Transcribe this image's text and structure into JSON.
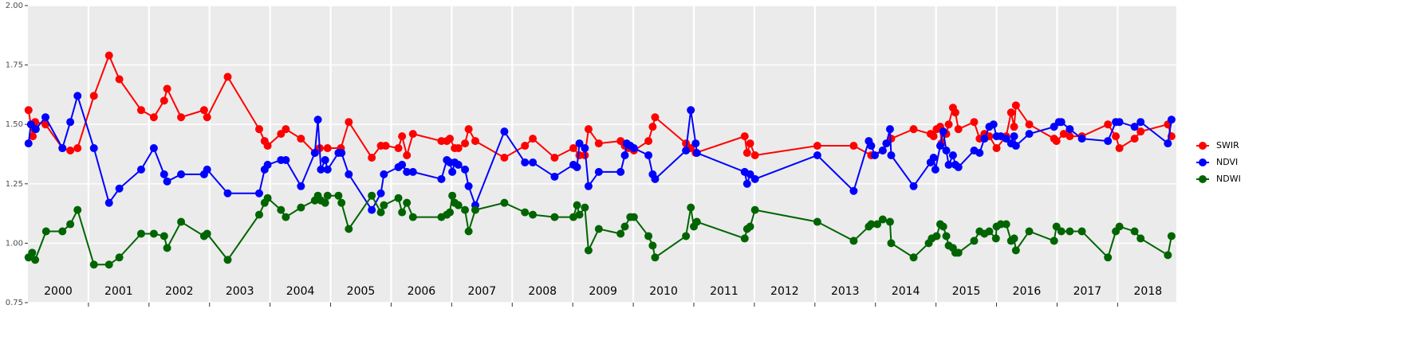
{
  "chart_data": {
    "type": "line",
    "xlim": [
      2000,
      2018.97
    ],
    "ylim": [
      0.75,
      2.0
    ],
    "yticks": [
      {
        "value": 0.75,
        "label": "0.75"
      },
      {
        "value": 1.0,
        "label": "1.00"
      },
      {
        "value": 1.25,
        "label": "1.25"
      },
      {
        "value": 1.5,
        "label": "1.50"
      },
      {
        "value": 1.75,
        "label": "1.75"
      },
      {
        "value": 2.0,
        "label": "2.00"
      }
    ],
    "xticks": [
      {
        "value": 2000.5,
        "label": "2000"
      },
      {
        "value": 2001.5,
        "label": "2001"
      },
      {
        "value": 2002.5,
        "label": "2002"
      },
      {
        "value": 2003.5,
        "label": "2003"
      },
      {
        "value": 2004.5,
        "label": "2004"
      },
      {
        "value": 2005.5,
        "label": "2005"
      },
      {
        "value": 2006.5,
        "label": "2006"
      },
      {
        "value": 2007.5,
        "label": "2007"
      },
      {
        "value": 2008.5,
        "label": "2008"
      },
      {
        "value": 2009.5,
        "label": "2009"
      },
      {
        "value": 2010.5,
        "label": "2010"
      },
      {
        "value": 2011.5,
        "label": "2011"
      },
      {
        "value": 2012.5,
        "label": "2012"
      },
      {
        "value": 2013.5,
        "label": "2013"
      },
      {
        "value": 2014.5,
        "label": "2014"
      },
      {
        "value": 2015.5,
        "label": "2015"
      },
      {
        "value": 2016.5,
        "label": "2016"
      },
      {
        "value": 2017.5,
        "label": "2017"
      },
      {
        "value": 2018.5,
        "label": "2018"
      }
    ],
    "x_breaks": [
      2001,
      2002,
      2003,
      2004,
      2005,
      2006,
      2007,
      2008,
      2009,
      2010,
      2011,
      2012,
      2013,
      2014,
      2015,
      2016,
      2017,
      2018
    ],
    "grid": true,
    "legend": "right",
    "series": [
      {
        "name": "SWIR",
        "color": "#ff0000",
        "x": [
          2000.01,
          2000.08,
          2000.12,
          2000.29,
          2000.57,
          2000.7,
          2000.82,
          2001.09,
          2001.34,
          2001.51,
          2001.87,
          2002.08,
          2002.25,
          2002.3,
          2002.53,
          2002.91,
          2002.96,
          2003.3,
          2003.82,
          2003.91,
          2003.96,
          2004.18,
          2004.26,
          2004.51,
          2004.74,
          2004.82,
          2004.95,
          2005.17,
          2005.3,
          2005.68,
          2005.83,
          2005.91,
          2006.12,
          2006.18,
          2006.26,
          2006.36,
          2006.83,
          2006.92,
          2006.97,
          2007.05,
          2007.11,
          2007.22,
          2007.28,
          2007.39,
          2007.87,
          2008.21,
          2008.34,
          2008.7,
          2009.01,
          2009.11,
          2009.2,
          2009.26,
          2009.43,
          2009.79,
          2009.86,
          2009.92,
          2010.01,
          2010.25,
          2010.32,
          2010.36,
          2010.87,
          2010.95,
          2011.03,
          2011.84,
          2011.88,
          2011.93,
          2012.01,
          2013.04,
          2013.64,
          2013.93,
          2014.12,
          2014.26,
          2014.63,
          2014.91,
          2014.96,
          2015.01,
          2015.07,
          2015.09,
          2015.17,
          2015.21,
          2015.28,
          2015.32,
          2015.37,
          2015.63,
          2015.72,
          2015.8,
          2015.88,
          2016.0,
          2016.16,
          2016.24,
          2016.29,
          2016.32,
          2016.54,
          2016.95,
          2016.99,
          2017.11,
          2017.21,
          2017.41,
          2017.84,
          2017.97,
          2018.03,
          2018.28,
          2018.38,
          2018.83,
          2018.89
        ],
        "values": [
          1.56,
          1.45,
          1.51,
          1.5,
          1.4,
          1.39,
          1.4,
          1.62,
          1.79,
          1.69,
          1.56,
          1.53,
          1.6,
          1.65,
          1.53,
          1.56,
          1.53,
          1.7,
          1.48,
          1.43,
          1.41,
          1.46,
          1.48,
          1.44,
          1.38,
          1.4,
          1.4,
          1.4,
          1.51,
          1.36,
          1.41,
          1.41,
          1.4,
          1.45,
          1.37,
          1.46,
          1.43,
          1.43,
          1.44,
          1.4,
          1.4,
          1.42,
          1.48,
          1.43,
          1.36,
          1.41,
          1.44,
          1.36,
          1.4,
          1.37,
          1.37,
          1.48,
          1.42,
          1.43,
          1.41,
          1.4,
          1.39,
          1.43,
          1.49,
          1.53,
          1.42,
          1.4,
          1.38,
          1.45,
          1.38,
          1.42,
          1.37,
          1.41,
          1.41,
          1.37,
          1.39,
          1.44,
          1.48,
          1.46,
          1.45,
          1.48,
          1.49,
          1.42,
          1.46,
          1.5,
          1.57,
          1.55,
          1.48,
          1.51,
          1.44,
          1.46,
          1.45,
          1.4,
          1.45,
          1.55,
          1.49,
          1.58,
          1.5,
          1.44,
          1.43,
          1.46,
          1.45,
          1.45,
          1.5,
          1.45,
          1.4,
          1.44,
          1.47,
          1.5,
          1.45
        ]
      },
      {
        "name": "NDVI",
        "color": "#0000ff",
        "x": [
          2000.01,
          2000.05,
          2000.13,
          2000.29,
          2000.57,
          2000.7,
          2000.82,
          2001.09,
          2001.34,
          2001.51,
          2001.87,
          2002.08,
          2002.25,
          2002.3,
          2002.53,
          2002.91,
          2002.96,
          2003.3,
          2003.82,
          2003.91,
          2003.96,
          2004.18,
          2004.26,
          2004.51,
          2004.74,
          2004.79,
          2004.84,
          2004.91,
          2004.95,
          2005.13,
          2005.18,
          2005.3,
          2005.68,
          2005.83,
          2005.88,
          2006.12,
          2006.18,
          2006.26,
          2006.36,
          2006.83,
          2006.92,
          2006.97,
          2007.01,
          2007.05,
          2007.11,
          2007.22,
          2007.28,
          2007.39,
          2007.87,
          2008.21,
          2008.34,
          2008.7,
          2009.01,
          2009.07,
          2009.11,
          2009.2,
          2009.26,
          2009.43,
          2009.79,
          2009.86,
          2009.89,
          2009.95,
          2010.01,
          2010.25,
          2010.32,
          2010.36,
          2010.87,
          2010.95,
          2011.03,
          2011.05,
          2011.84,
          2011.88,
          2011.93,
          2012.01,
          2013.04,
          2013.64,
          2013.89,
          2013.93,
          2013.99,
          2014.12,
          2014.18,
          2014.24,
          2014.26,
          2014.63,
          2014.91,
          2014.96,
          2014.99,
          2015.07,
          2015.12,
          2015.17,
          2015.21,
          2015.28,
          2015.32,
          2015.37,
          2015.63,
          2015.72,
          2015.8,
          2015.88,
          2015.95,
          2016.0,
          2016.07,
          2016.16,
          2016.24,
          2016.29,
          2016.32,
          2016.54,
          2016.95,
          2017.03,
          2017.07,
          2017.21,
          2017.41,
          2017.84,
          2017.97,
          2018.03,
          2018.28,
          2018.38,
          2018.83,
          2018.89
        ],
        "values": [
          1.42,
          1.5,
          1.48,
          1.53,
          1.4,
          1.51,
          1.62,
          1.4,
          1.17,
          1.23,
          1.31,
          1.4,
          1.29,
          1.26,
          1.29,
          1.29,
          1.31,
          1.21,
          1.21,
          1.31,
          1.33,
          1.35,
          1.35,
          1.24,
          1.38,
          1.52,
          1.31,
          1.35,
          1.31,
          1.38,
          1.38,
          1.29,
          1.14,
          1.21,
          1.29,
          1.32,
          1.33,
          1.3,
          1.3,
          1.27,
          1.35,
          1.34,
          1.3,
          1.34,
          1.33,
          1.31,
          1.24,
          1.16,
          1.47,
          1.34,
          1.34,
          1.28,
          1.33,
          1.32,
          1.42,
          1.4,
          1.24,
          1.3,
          1.3,
          1.37,
          1.42,
          1.41,
          1.4,
          1.37,
          1.29,
          1.27,
          1.39,
          1.56,
          1.42,
          1.38,
          1.3,
          1.25,
          1.29,
          1.27,
          1.37,
          1.22,
          1.43,
          1.41,
          1.37,
          1.39,
          1.42,
          1.48,
          1.37,
          1.24,
          1.34,
          1.36,
          1.31,
          1.41,
          1.47,
          1.39,
          1.33,
          1.37,
          1.33,
          1.32,
          1.39,
          1.38,
          1.44,
          1.49,
          1.5,
          1.45,
          1.45,
          1.44,
          1.42,
          1.45,
          1.41,
          1.46,
          1.49,
          1.51,
          1.51,
          1.48,
          1.44,
          1.43,
          1.51,
          1.51,
          1.49,
          1.51,
          1.42,
          1.52
        ]
      },
      {
        "name": "NDWI",
        "color": "#006400",
        "x": [
          2000.01,
          2000.07,
          2000.12,
          2000.3,
          2000.57,
          2000.7,
          2000.82,
          2001.09,
          2001.34,
          2001.51,
          2001.87,
          2002.08,
          2002.25,
          2002.3,
          2002.53,
          2002.91,
          2002.96,
          2003.3,
          2003.82,
          2003.91,
          2003.96,
          2004.18,
          2004.26,
          2004.51,
          2004.74,
          2004.79,
          2004.84,
          2004.91,
          2004.95,
          2005.13,
          2005.18,
          2005.3,
          2005.68,
          2005.83,
          2005.88,
          2006.12,
          2006.18,
          2006.26,
          2006.36,
          2006.83,
          2006.92,
          2006.97,
          2007.01,
          2007.05,
          2007.11,
          2007.22,
          2007.28,
          2007.39,
          2007.87,
          2008.21,
          2008.34,
          2008.7,
          2009.01,
          2009.07,
          2009.11,
          2009.2,
          2009.26,
          2009.43,
          2009.79,
          2009.86,
          2009.95,
          2010.01,
          2010.25,
          2010.32,
          2010.36,
          2010.87,
          2010.95,
          2011.0,
          2011.05,
          2011.84,
          2011.88,
          2011.93,
          2012.01,
          2013.04,
          2013.64,
          2013.89,
          2013.93,
          2014.03,
          2014.12,
          2014.24,
          2014.26,
          2014.63,
          2014.88,
          2014.93,
          2015.01,
          2015.07,
          2015.12,
          2015.17,
          2015.21,
          2015.28,
          2015.32,
          2015.37,
          2015.63,
          2015.72,
          2015.8,
          2015.88,
          2015.99,
          2016.0,
          2016.07,
          2016.16,
          2016.24,
          2016.29,
          2016.32,
          2016.54,
          2016.95,
          2016.99,
          2017.07,
          2017.21,
          2017.41,
          2017.84,
          2017.97,
          2018.03,
          2018.28,
          2018.38,
          2018.83,
          2018.89
        ],
        "values": [
          0.94,
          0.96,
          0.93,
          1.05,
          1.05,
          1.08,
          1.14,
          0.91,
          0.91,
          0.94,
          1.04,
          1.04,
          1.03,
          0.98,
          1.09,
          1.03,
          1.04,
          0.93,
          1.12,
          1.17,
          1.19,
          1.14,
          1.11,
          1.15,
          1.18,
          1.2,
          1.18,
          1.17,
          1.2,
          1.2,
          1.17,
          1.06,
          1.2,
          1.13,
          1.16,
          1.19,
          1.13,
          1.17,
          1.11,
          1.11,
          1.12,
          1.13,
          1.2,
          1.17,
          1.16,
          1.14,
          1.05,
          1.14,
          1.17,
          1.13,
          1.12,
          1.11,
          1.11,
          1.16,
          1.12,
          1.15,
          0.97,
          1.06,
          1.04,
          1.07,
          1.11,
          1.11,
          1.03,
          0.99,
          0.94,
          1.03,
          1.15,
          1.07,
          1.09,
          1.02,
          1.06,
          1.07,
          1.14,
          1.09,
          1.01,
          1.07,
          1.08,
          1.08,
          1.1,
          1.09,
          1.0,
          0.94,
          1.0,
          1.02,
          1.03,
          1.08,
          1.07,
          1.03,
          0.99,
          0.98,
          0.96,
          0.96,
          1.01,
          1.05,
          1.04,
          1.05,
          1.02,
          1.07,
          1.08,
          1.08,
          1.01,
          1.02,
          0.97,
          1.05,
          1.01,
          1.07,
          1.05,
          1.05,
          1.05,
          0.94,
          1.05,
          1.07,
          1.05,
          1.02,
          0.95,
          1.03
        ]
      }
    ]
  }
}
